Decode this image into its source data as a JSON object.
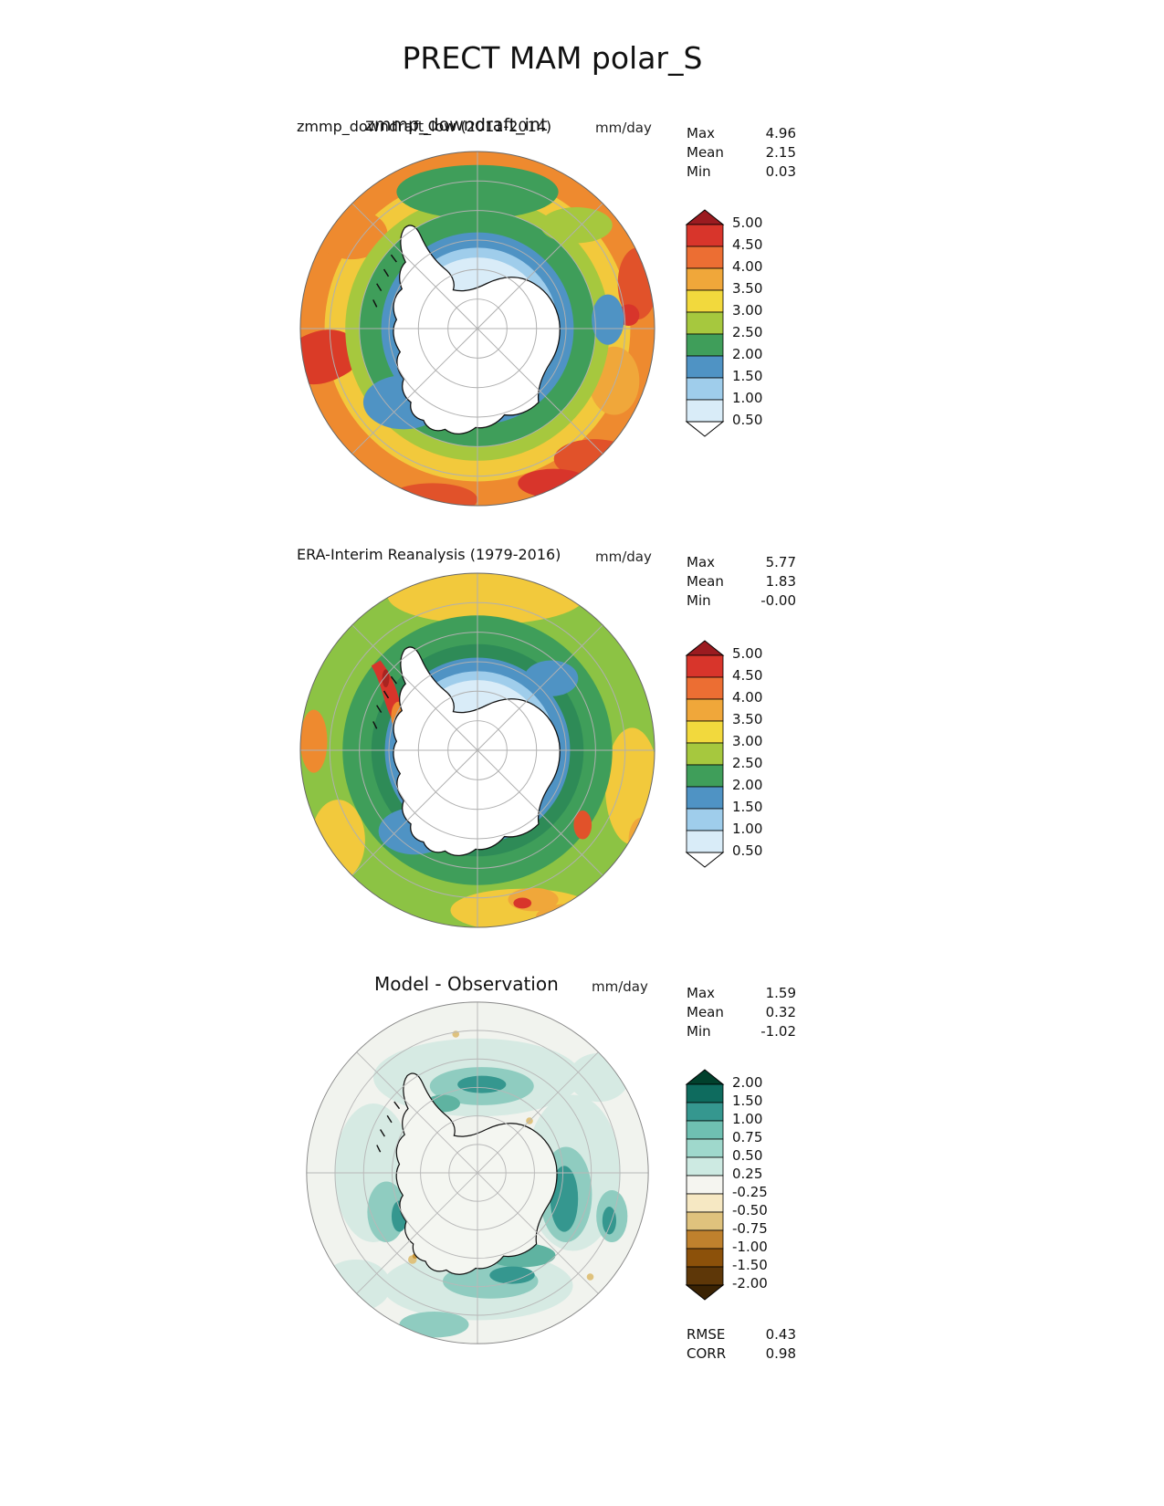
{
  "page": {
    "title": "PRECT MAM polar_S"
  },
  "chart_data": {
    "type": "heatmap",
    "subtype": "polar-stereographic-contour-map-set",
    "title": "PRECT MAM polar_S",
    "variable": "PRECT",
    "season": "MAM",
    "region": "polar_S",
    "units": "mm/day",
    "graticule_color": "#b0b0b0",
    "panels": [
      {
        "name": "model",
        "title_overlap": {
          "back": "zmmp_downdraft_low (2011-2014)",
          "front": "zmmp_downdraft_int"
        },
        "units": "mm/day",
        "stats": [
          {
            "label": "Max",
            "value": "4.96"
          },
          {
            "label": "Mean",
            "value": "2.15"
          },
          {
            "label": "Min",
            "value": "0.03"
          }
        ],
        "colorbar": {
          "levels": [
            "5.00",
            "4.50",
            "4.00",
            "3.50",
            "3.00",
            "2.50",
            "2.00",
            "1.50",
            "1.00",
            "0.50"
          ],
          "cell_colors": [
            "#d8352b",
            "#ec6e33",
            "#f0a73a",
            "#f2d93d",
            "#a6c83e",
            "#3f9e5a",
            "#4f93c4",
            "#9fcdeb",
            "#d9ecf8"
          ],
          "over_color": "#9b1b20",
          "under_color": "#ffffff"
        }
      },
      {
        "name": "observation",
        "title": "ERA-Interim Reanalysis (1979-2016)",
        "units": "mm/day",
        "stats": [
          {
            "label": "Max",
            "value": "5.77"
          },
          {
            "label": "Mean",
            "value": "1.83"
          },
          {
            "label": "Min",
            "value": "-0.00"
          }
        ],
        "colorbar": {
          "levels": [
            "5.00",
            "4.50",
            "4.00",
            "3.50",
            "3.00",
            "2.50",
            "2.00",
            "1.50",
            "1.00",
            "0.50"
          ],
          "cell_colors": [
            "#d8352b",
            "#ec6e33",
            "#f0a73a",
            "#f2d93d",
            "#a6c83e",
            "#3f9e5a",
            "#4f93c4",
            "#9fcdeb",
            "#d9ecf8"
          ],
          "over_color": "#9b1b20",
          "under_color": "#ffffff"
        }
      },
      {
        "name": "difference",
        "title": "Model - Observation",
        "units": "mm/day",
        "stats": [
          {
            "label": "Max",
            "value": "1.59"
          },
          {
            "label": "Mean",
            "value": "0.32"
          },
          {
            "label": "Min",
            "value": "-1.02"
          }
        ],
        "colorbar": {
          "levels": [
            "2.00",
            "1.50",
            "1.00",
            "0.75",
            "0.50",
            "0.25",
            "-0.25",
            "-0.50",
            "-0.75",
            "-1.00",
            "-1.50",
            "-2.00"
          ],
          "cell_colors": [
            "#0e6b5e",
            "#35978f",
            "#6fc0b2",
            "#9fd8cc",
            "#cdeae2",
            "#f5f5f0",
            "#f6e8c3",
            "#dfc27d",
            "#bf812d",
            "#8c510a",
            "#5e3708"
          ],
          "over_color": "#01402c",
          "under_color": "#3a2203"
        },
        "metrics": [
          {
            "label": "RMSE",
            "value": "0.43"
          },
          {
            "label": "CORR",
            "value": "0.98"
          }
        ]
      }
    ]
  }
}
